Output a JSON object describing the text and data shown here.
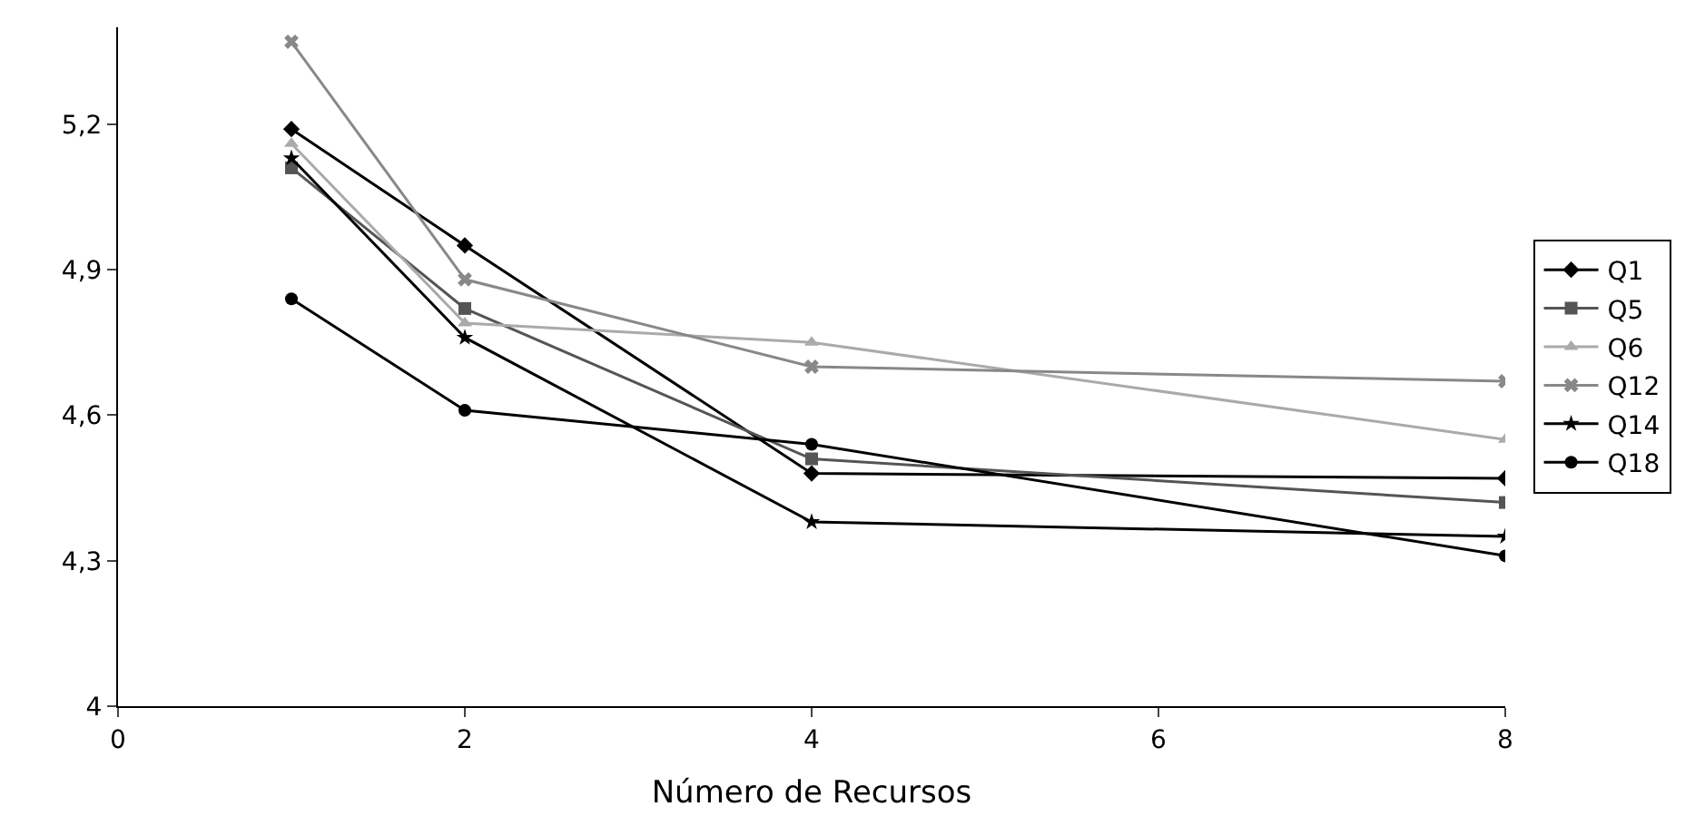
{
  "chart_data": {
    "type": "line",
    "xlabel": "Número de Recursos",
    "x": [
      1,
      2,
      4,
      8
    ],
    "series": [
      {
        "name": "Q1",
        "color": "#000000",
        "marker": "diamond",
        "values": [
          5.19,
          4.95,
          4.48,
          4.47
        ]
      },
      {
        "name": "Q5",
        "color": "#555555",
        "marker": "square",
        "values": [
          5.11,
          4.82,
          4.51,
          4.42
        ]
      },
      {
        "name": "Q6",
        "color": "#aaaaaa",
        "marker": "triangle",
        "values": [
          5.16,
          4.79,
          4.75,
          4.55
        ]
      },
      {
        "name": "Q12",
        "color": "#888888",
        "marker": "cross",
        "values": [
          5.37,
          4.88,
          4.7,
          4.67
        ]
      },
      {
        "name": "Q14",
        "color": "#000000",
        "marker": "star",
        "values": [
          5.13,
          4.76,
          4.38,
          4.35
        ]
      },
      {
        "name": "Q18",
        "color": "#000000",
        "marker": "circle",
        "values": [
          4.84,
          4.61,
          4.54,
          4.31
        ]
      }
    ],
    "xlim": [
      0,
      8
    ],
    "xticks": [
      0,
      2,
      4,
      6,
      8
    ],
    "ylim": [
      4,
      5.4
    ],
    "yticks": [
      4,
      {
        "value": 4.3,
        "label": "4,3"
      },
      {
        "value": 4.6,
        "label": "4,6"
      },
      {
        "value": 4.9,
        "label": "4,9"
      },
      {
        "value": 5.2,
        "label": "5,2"
      }
    ],
    "grid": false,
    "legend": "right",
    "line_style": "solid"
  }
}
